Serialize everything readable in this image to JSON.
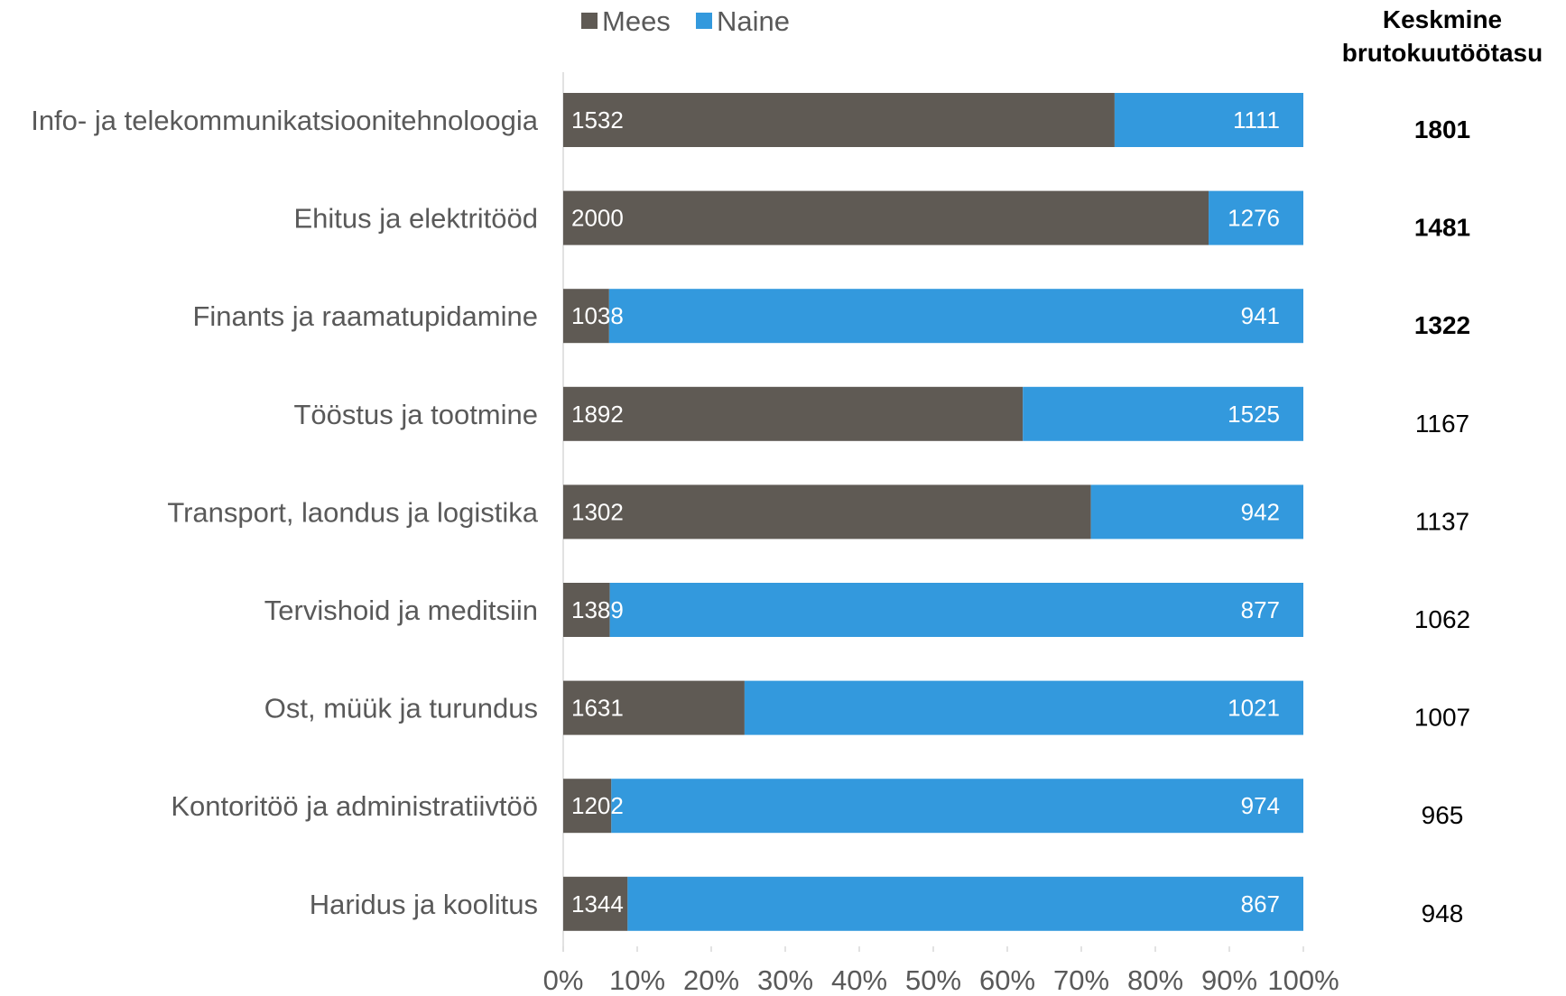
{
  "chart_data": {
    "type": "bar",
    "orientation": "horizontal",
    "stacking": "percent",
    "categories": [
      "Info- ja telekommunikatsioonitehnoloogia",
      "Ehitus ja elektritööd",
      "Finants ja raamatupidamine",
      "Tööstus ja tootmine",
      "Transport, laondus ja logistika",
      "Tervishoid ja meditsiin",
      "Ost, müük ja turundus",
      "Kontoritöö ja administratiivtöö",
      "Haridus ja koolitus"
    ],
    "series": [
      {
        "name": "Mees",
        "color": "#5f5a54",
        "shares": [
          74.5,
          87.2,
          6.2,
          62.1,
          71.3,
          6.3,
          24.5,
          6.5,
          8.7
        ],
        "labels": [
          "1532",
          "2000",
          "1038",
          "1892",
          "1302",
          "1389",
          "1631",
          "1202",
          "1344"
        ]
      },
      {
        "name": "Naine",
        "color": "#3399dd",
        "shares": [
          25.5,
          12.8,
          93.8,
          37.9,
          28.7,
          93.7,
          75.5,
          93.5,
          91.3
        ],
        "labels": [
          "1111",
          "1276",
          "941",
          "1525",
          "942",
          "877",
          "1021",
          "974",
          "867"
        ]
      }
    ],
    "xticks": [
      "0%",
      "10%",
      "20%",
      "30%",
      "40%",
      "50%",
      "60%",
      "70%",
      "80%",
      "90%",
      "100%"
    ],
    "xlim": [
      0,
      100
    ],
    "legend": "top",
    "grid": false,
    "side_column": {
      "title_line1": "Keskmine",
      "title_line2": "brutokuutöötasu",
      "values": [
        "1801",
        "1481",
        "1322",
        "1167",
        "1137",
        "1062",
        "1007",
        "965",
        "948"
      ],
      "bold": [
        true,
        true,
        true,
        false,
        false,
        false,
        false,
        false,
        false
      ]
    }
  }
}
